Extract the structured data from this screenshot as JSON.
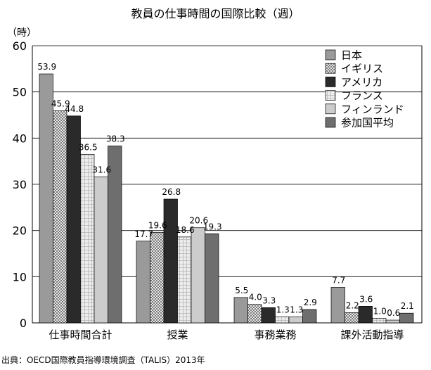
{
  "chart_data": {
    "type": "bar",
    "title": "教員の仕事時間の国際比較（週）",
    "ylabel": "（時）",
    "ylim": [
      0,
      60
    ],
    "yticks": [
      0,
      10,
      20,
      30,
      40,
      50,
      60
    ],
    "grid": true,
    "legend_position": "top-right",
    "categories": [
      "仕事時間合計",
      "授業",
      "事務業務",
      "課外活動指導"
    ],
    "series": [
      {
        "name": "日本",
        "values": [
          53.9,
          17.7,
          5.5,
          7.7
        ],
        "labels": [
          "53.9",
          "17.7",
          "5.5",
          "7.7"
        ],
        "color": "#9a9a9a",
        "pattern": "solid"
      },
      {
        "name": "イギリス",
        "values": [
          45.9,
          19.6,
          4.0,
          2.2
        ],
        "labels": [
          "45.9",
          "19.6",
          "4.0",
          "2.2"
        ],
        "color": "#d6d6d6",
        "pattern": "check"
      },
      {
        "name": "アメリカ",
        "values": [
          44.8,
          26.8,
          3.3,
          3.6
        ],
        "labels": [
          "44.8",
          "26.8",
          "3.3",
          "3.6"
        ],
        "color": "#2a2a2a",
        "pattern": "solid"
      },
      {
        "name": "フランス",
        "values": [
          36.5,
          18.6,
          1.3,
          1.0
        ],
        "labels": [
          "36.5",
          "18.6",
          "1.3",
          "1.0"
        ],
        "color": "#e4e4e4",
        "pattern": "grid"
      },
      {
        "name": "フィンランド",
        "values": [
          31.6,
          20.6,
          1.3,
          0.6
        ],
        "labels": [
          "31.6",
          "20.6",
          "1.3",
          "0.6"
        ],
        "color": "#cccccc",
        "pattern": "solid"
      },
      {
        "name": "参加国平均",
        "values": [
          38.3,
          19.3,
          2.9,
          2.1
        ],
        "labels": [
          "38.3",
          "19.3",
          "2.9",
          "2.1"
        ],
        "color": "#6e6e6e",
        "pattern": "solid"
      }
    ]
  },
  "source": "出典：OECD国際教員指導環境調査（TALIS）2013年"
}
